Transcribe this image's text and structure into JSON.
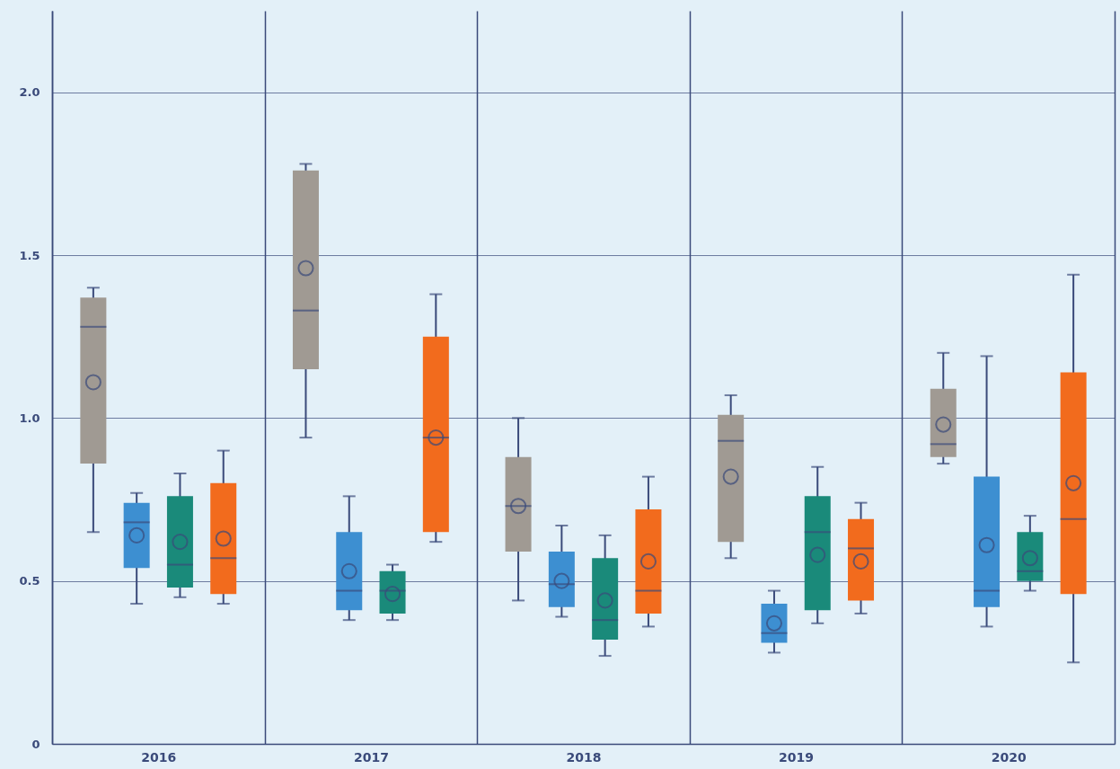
{
  "chart_data": {
    "type": "box",
    "categories": [
      "2016",
      "2017",
      "2018",
      "2019",
      "2020"
    ],
    "ylim": [
      0,
      2.25
    ],
    "yticks": [
      0,
      0.5,
      {
        "value": 1,
        "label": "1.0"
      },
      1.5,
      {
        "value": 2,
        "label": "2.0"
      }
    ],
    "grid": true,
    "series": [
      {
        "color": "#a09a93",
        "boxes": [
          {
            "low": 0.65,
            "q1": 0.86,
            "median": 1.28,
            "q3": 1.37,
            "high": 1.4,
            "mean": 1.11
          },
          {
            "low": 0.94,
            "q1": 1.15,
            "median": 1.33,
            "q3": 1.76,
            "high": 1.78,
            "mean": 1.46
          },
          {
            "low": 0.44,
            "q1": 0.59,
            "median": 0.73,
            "q3": 0.88,
            "high": 1.0,
            "mean": 0.73
          },
          {
            "low": 0.57,
            "q1": 0.62,
            "median": 0.93,
            "q3": 1.01,
            "high": 1.07,
            "mean": 0.82
          },
          {
            "low": 0.86,
            "q1": 0.88,
            "median": 0.92,
            "q3": 1.09,
            "high": 1.2,
            "mean": 0.98
          }
        ]
      },
      {
        "color": "#3d8fd1",
        "boxes": [
          {
            "low": 0.43,
            "q1": 0.54,
            "median": 0.68,
            "q3": 0.74,
            "high": 0.77,
            "mean": 0.64
          },
          {
            "low": 0.38,
            "q1": 0.41,
            "median": 0.47,
            "q3": 0.65,
            "high": 0.76,
            "mean": 0.53
          },
          {
            "low": 0.39,
            "q1": 0.42,
            "median": 0.49,
            "q3": 0.59,
            "high": 0.67,
            "mean": 0.5
          },
          {
            "low": 0.28,
            "q1": 0.31,
            "median": 0.34,
            "q3": 0.43,
            "high": 0.47,
            "mean": 0.37
          },
          {
            "low": 0.36,
            "q1": 0.42,
            "median": 0.47,
            "q3": 0.82,
            "high": 1.19,
            "mean": 0.61
          }
        ]
      },
      {
        "color": "#1a8a7a",
        "boxes": [
          {
            "low": 0.45,
            "q1": 0.48,
            "median": 0.55,
            "q3": 0.76,
            "high": 0.83,
            "mean": 0.62
          },
          {
            "low": 0.38,
            "q1": 0.4,
            "median": 0.47,
            "q3": 0.53,
            "high": 0.55,
            "mean": 0.46
          },
          {
            "low": 0.27,
            "q1": 0.32,
            "median": 0.38,
            "q3": 0.57,
            "high": 0.64,
            "mean": 0.44
          },
          {
            "low": 0.37,
            "q1": 0.41,
            "median": 0.65,
            "q3": 0.76,
            "high": 0.85,
            "mean": 0.58
          },
          {
            "low": 0.47,
            "q1": 0.5,
            "median": 0.53,
            "q3": 0.65,
            "high": 0.7,
            "mean": 0.57
          }
        ]
      },
      {
        "color": "#f26b1d",
        "boxes": [
          {
            "low": 0.43,
            "q1": 0.46,
            "median": 0.57,
            "q3": 0.8,
            "high": 0.9,
            "mean": 0.63
          },
          {
            "low": 0.62,
            "q1": 0.65,
            "median": 0.94,
            "q3": 1.25,
            "high": 1.38,
            "mean": 0.94
          },
          {
            "low": 0.36,
            "q1": 0.4,
            "median": 0.47,
            "q3": 0.72,
            "high": 0.82,
            "mean": 0.56
          },
          {
            "low": 0.4,
            "q1": 0.44,
            "median": 0.6,
            "q3": 0.69,
            "high": 0.74,
            "mean": 0.56
          },
          {
            "low": 0.25,
            "q1": 0.46,
            "median": 0.69,
            "q3": 1.14,
            "high": 1.44,
            "mean": 0.8
          }
        ]
      }
    ]
  }
}
